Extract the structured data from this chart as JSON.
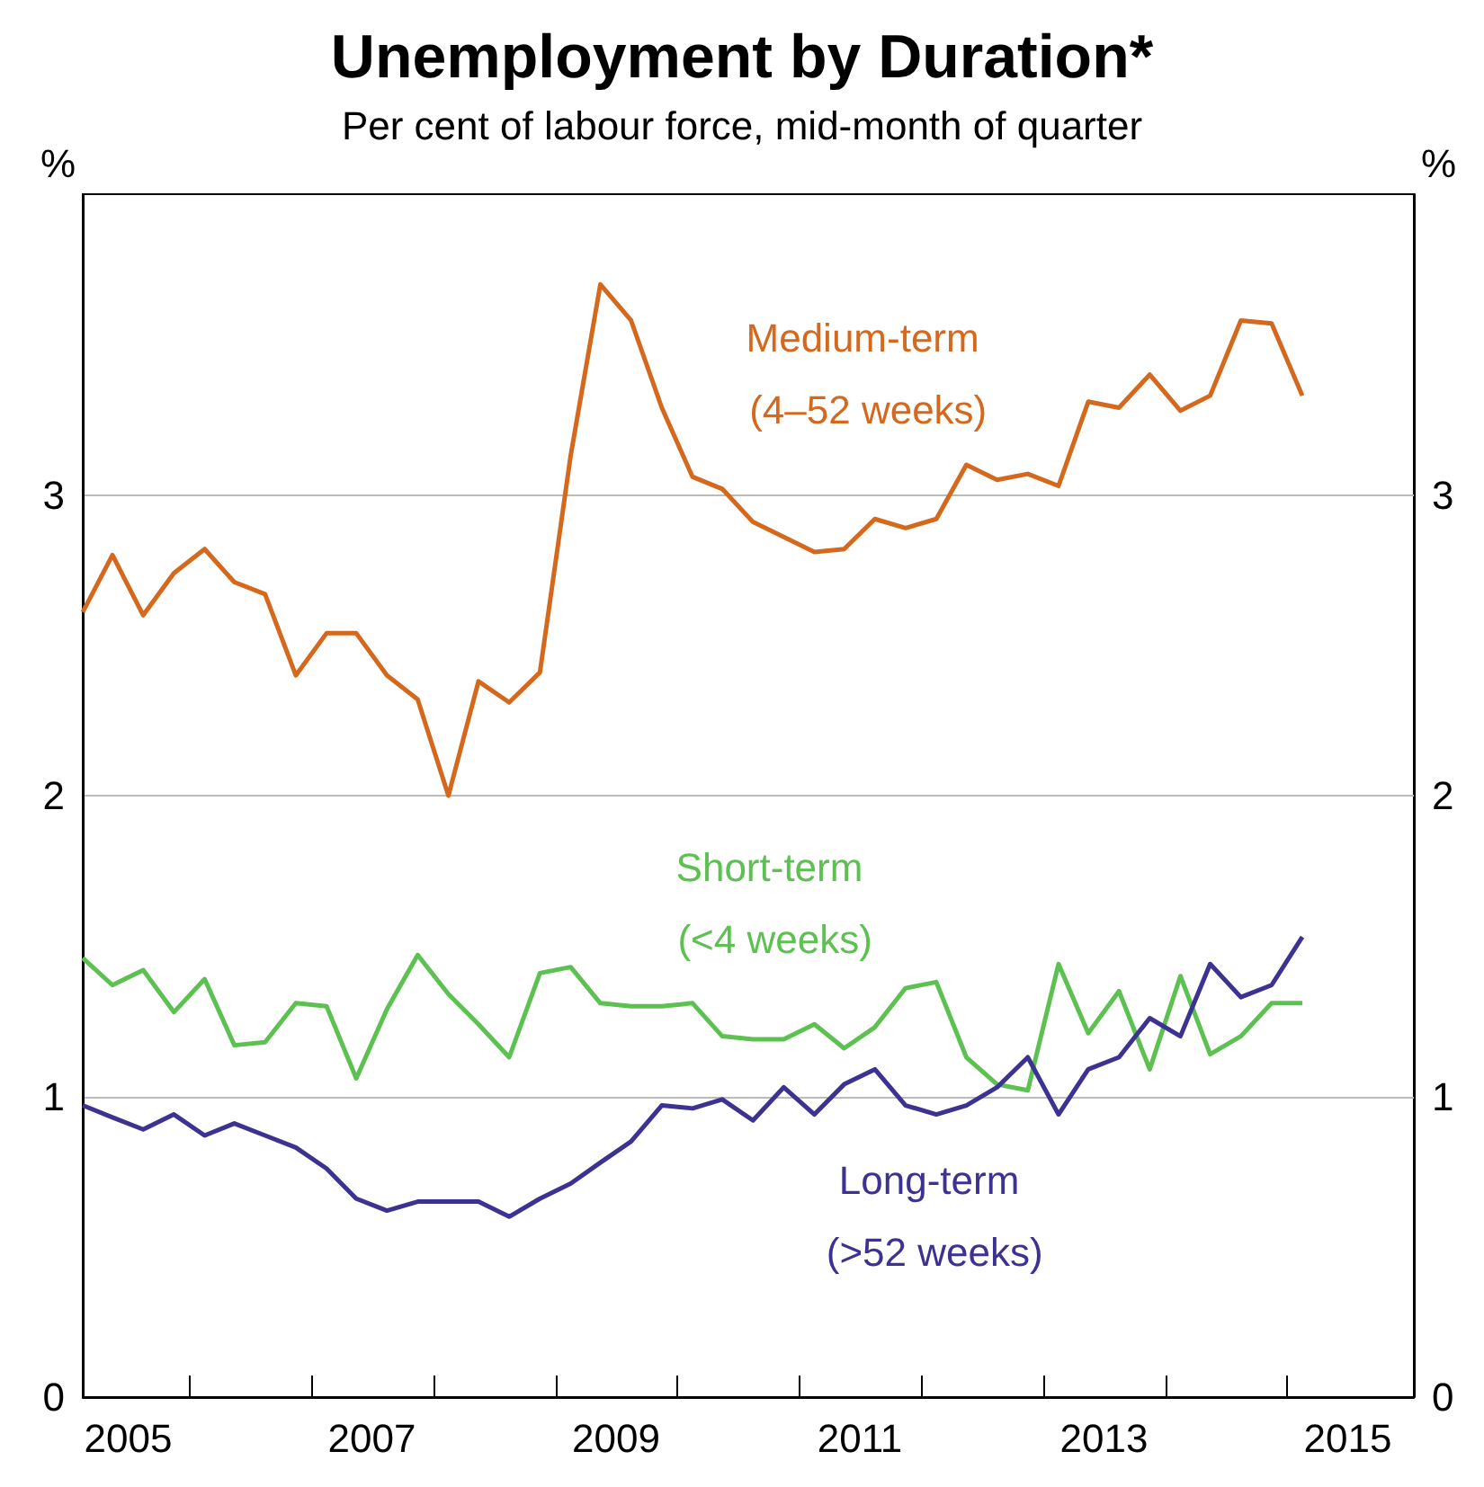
{
  "chart_data": {
    "type": "line",
    "title": "Unemployment by Duration*",
    "subtitle": "Per cent of labour force, mid-month of quarter",
    "ylabel": "%",
    "y2label": "%",
    "x": [
      "2005-02",
      "2005-05",
      "2005-08",
      "2005-11",
      "2006-02",
      "2006-05",
      "2006-08",
      "2006-11",
      "2007-02",
      "2007-05",
      "2007-08",
      "2007-11",
      "2008-02",
      "2008-05",
      "2008-08",
      "2008-11",
      "2009-02",
      "2009-05",
      "2009-08",
      "2009-11",
      "2010-02",
      "2010-05",
      "2010-08",
      "2010-11",
      "2011-02",
      "2011-05",
      "2011-08",
      "2011-11",
      "2012-02",
      "2012-05",
      "2012-08",
      "2012-11",
      "2013-02",
      "2013-05",
      "2013-08",
      "2013-11",
      "2014-02",
      "2014-05",
      "2014-08",
      "2014-11",
      "2015-02"
    ],
    "series": [
      {
        "name": "Medium-term (4–52 weeks)",
        "color": "#d4691e",
        "values": [
          2.61,
          2.8,
          2.6,
          2.74,
          2.82,
          2.71,
          2.67,
          2.4,
          2.54,
          2.54,
          2.4,
          2.32,
          2.0,
          2.38,
          2.31,
          2.41,
          3.13,
          3.7,
          3.58,
          3.29,
          3.06,
          3.02,
          2.91,
          2.86,
          2.81,
          2.82,
          2.92,
          2.89,
          2.92,
          3.1,
          3.05,
          3.07,
          3.03,
          3.31,
          3.29,
          3.4,
          3.28,
          3.33,
          3.58,
          3.57,
          3.33
        ]
      },
      {
        "name": "Short-term (<4 weeks)",
        "color": "#5cc151",
        "values": [
          1.46,
          1.37,
          1.42,
          1.28,
          1.39,
          1.17,
          1.18,
          1.31,
          1.3,
          1.06,
          1.29,
          1.47,
          1.34,
          1.24,
          1.13,
          1.41,
          1.43,
          1.31,
          1.3,
          1.3,
          1.31,
          1.2,
          1.19,
          1.19,
          1.24,
          1.16,
          1.23,
          1.36,
          1.38,
          1.13,
          1.04,
          1.02,
          1.44,
          1.21,
          1.35,
          1.09,
          1.4,
          1.14,
          1.2,
          1.31,
          1.31
        ]
      },
      {
        "name": "Long-term (>52 weeks)",
        "color": "#3b3291",
        "values": [
          0.97,
          0.93,
          0.89,
          0.94,
          0.87,
          0.91,
          0.87,
          0.83,
          0.76,
          0.66,
          0.62,
          0.65,
          0.65,
          0.65,
          0.6,
          0.66,
          0.71,
          0.78,
          0.85,
          0.97,
          0.96,
          0.99,
          0.92,
          1.03,
          0.94,
          1.04,
          1.09,
          0.97,
          0.94,
          0.97,
          1.03,
          1.13,
          0.94,
          1.09,
          1.13,
          1.26,
          1.2,
          1.44,
          1.33,
          1.37,
          1.53
        ]
      }
    ],
    "xlim": [
      "2005-02",
      "2016-01"
    ],
    "xticks": [
      {
        "value": "2005-07-01",
        "label": "2005"
      },
      {
        "value": "2006-01-01",
        "label": null
      },
      {
        "value": "2007-01-01",
        "label": null
      },
      {
        "value": "2007-07-01",
        "label": "2007"
      },
      {
        "value": "2008-01-01",
        "label": null
      },
      {
        "value": "2009-01-01",
        "label": null
      },
      {
        "value": "2009-07-01",
        "label": "2009"
      },
      {
        "value": "2010-01-01",
        "label": null
      },
      {
        "value": "2011-01-01",
        "label": null
      },
      {
        "value": "2011-07-01",
        "label": "2011"
      },
      {
        "value": "2012-01-01",
        "label": null
      },
      {
        "value": "2013-01-01",
        "label": null
      },
      {
        "value": "2013-07-01",
        "label": "2013"
      },
      {
        "value": "2014-01-01",
        "label": null
      },
      {
        "value": "2015-01-01",
        "label": null
      },
      {
        "value": "2015-07-01",
        "label": "2015"
      }
    ],
    "ylim": [
      0,
      4
    ],
    "yticks": [
      0,
      1,
      2,
      3
    ],
    "y2lim": [
      0,
      4
    ],
    "y2ticks": [
      0,
      1,
      2,
      3
    ],
    "grid": "y",
    "legend": false,
    "marker": "none",
    "line_style": "solid"
  }
}
